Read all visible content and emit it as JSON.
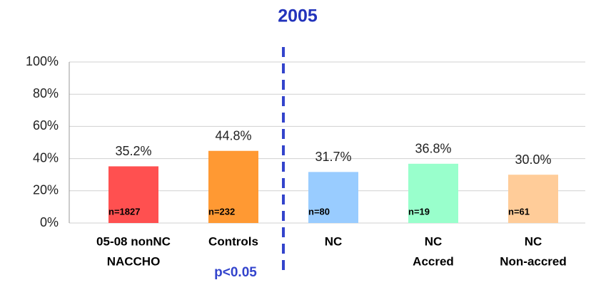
{
  "chart_data": {
    "type": "bar",
    "title": "2005",
    "categories": [
      [
        "05-08 nonNC",
        "NACCHO"
      ],
      [
        "Controls"
      ],
      [
        "NC"
      ],
      [
        "NC",
        "Accred"
      ],
      [
        "NC",
        "Non-accred"
      ]
    ],
    "values": [
      35.2,
      44.8,
      31.7,
      36.8,
      30.0
    ],
    "value_labels": [
      "35.2%",
      "44.8%",
      "31.7%",
      "36.8%",
      "30.0%"
    ],
    "colors": [
      "#ff5050",
      "#ff9933",
      "#99ccff",
      "#99ffcc",
      "#ffcc99"
    ],
    "n_labels": [
      "n=1827",
      "n=232",
      "n=80",
      "n=19",
      "n=61"
    ],
    "annotation": "p<0.05",
    "ylim": [
      0,
      100
    ],
    "yticks": [
      {
        "value": 0,
        "label": "0%"
      },
      {
        "value": 20,
        "label": "20%"
      },
      {
        "value": 40,
        "label": "40%"
      },
      {
        "value": 60,
        "label": "60%"
      },
      {
        "value": 80,
        "label": "80%"
      },
      {
        "value": 100,
        "label": "100%"
      }
    ],
    "grid": true
  }
}
